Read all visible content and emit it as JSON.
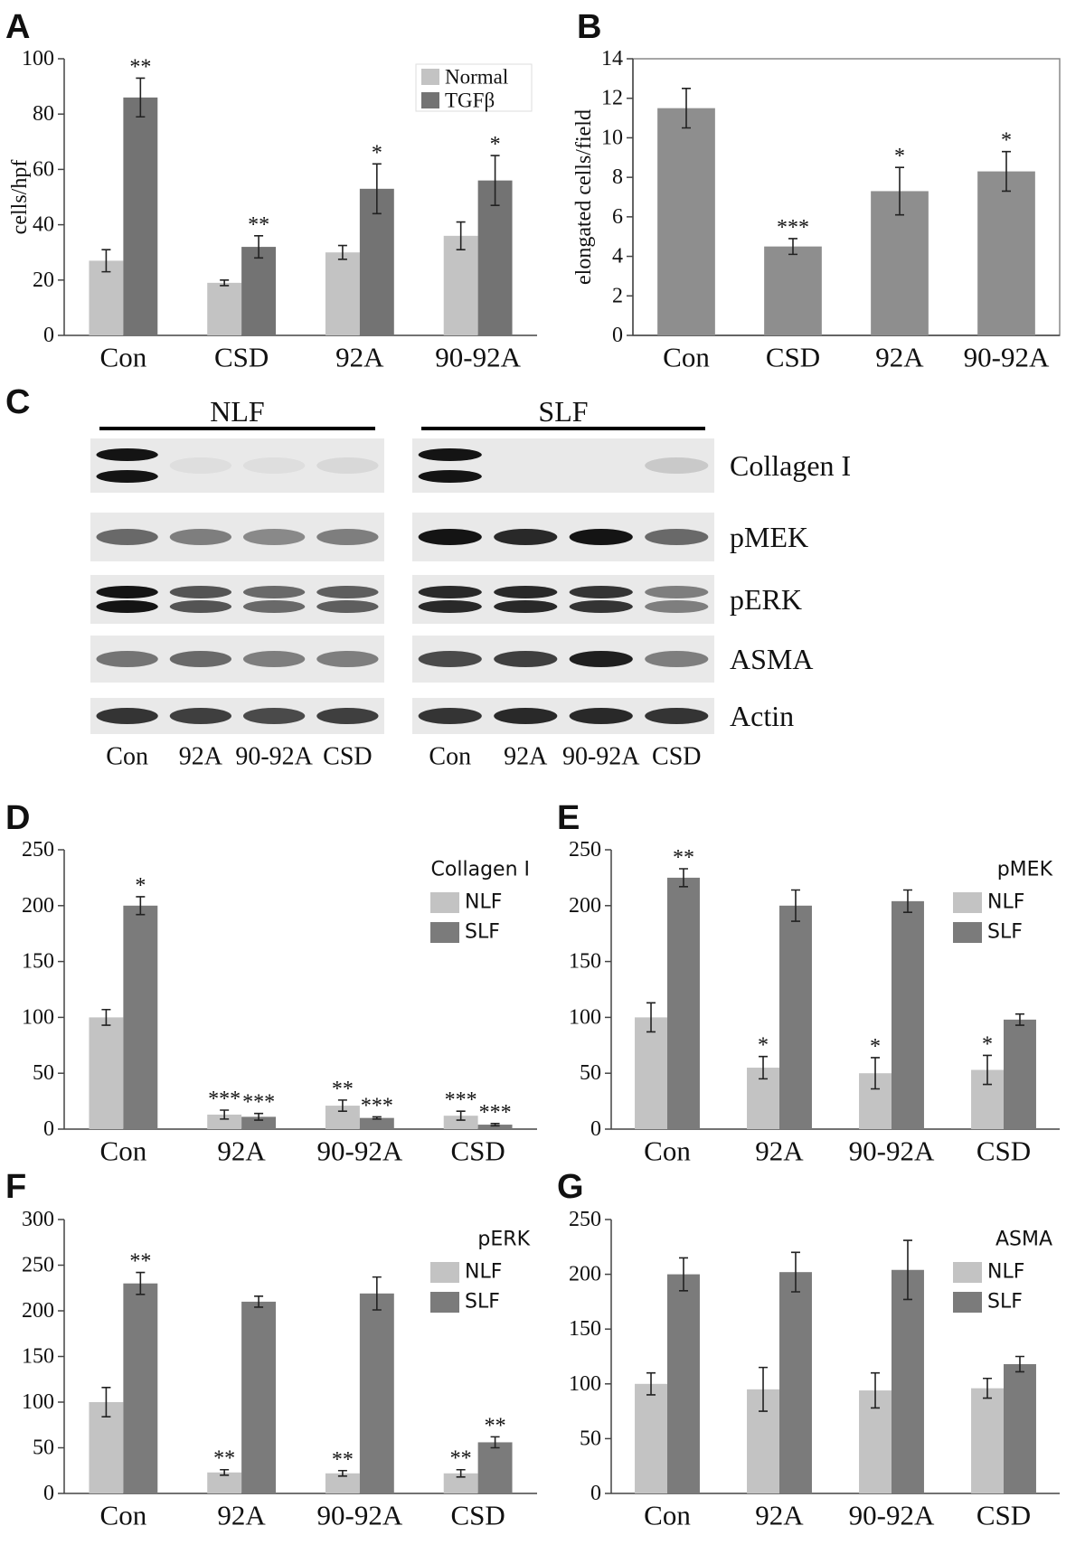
{
  "chart_data": [
    {
      "panel": "A",
      "type": "bar",
      "ylabel": "cells/hpf",
      "categories": [
        "Con",
        "CSD",
        "92A",
        "90-92A"
      ],
      "ylim": [
        0,
        100
      ],
      "yticks": [
        0,
        20,
        40,
        60,
        80,
        100
      ],
      "legend": "top-right",
      "legend_box": true,
      "series": [
        {
          "name": "Normal",
          "color": "#c3c3c3",
          "values": [
            27,
            19,
            30,
            36
          ],
          "errors": [
            4,
            1,
            2.5,
            5
          ],
          "stars": [
            null,
            null,
            null,
            null
          ]
        },
        {
          "name": "TGFβ",
          "color": "#737373",
          "values": [
            86,
            32,
            53,
            56
          ],
          "errors": [
            7,
            4,
            9,
            9
          ],
          "stars": [
            "**",
            "**",
            "*",
            "*"
          ]
        }
      ]
    },
    {
      "panel": "B",
      "type": "bar",
      "ylabel": "elongated cells/field",
      "categories": [
        "Con",
        "CSD",
        "92A",
        "90-92A"
      ],
      "ylim": [
        0,
        14
      ],
      "yticks": [
        0,
        2,
        4,
        6,
        8,
        10,
        12,
        14
      ],
      "frame": true,
      "series": [
        {
          "color": "#8e8e8e",
          "values": [
            11.5,
            4.5,
            7.3,
            8.3
          ],
          "errors": [
            1,
            0.4,
            1.2,
            1
          ],
          "stars": [
            null,
            "***",
            "*",
            "*"
          ]
        }
      ]
    },
    {
      "panel": "D",
      "type": "bar",
      "legend_title": "Collagen I",
      "categories": [
        "Con",
        "92A",
        "90-92A",
        "CSD"
      ],
      "ylim": [
        0,
        250
      ],
      "yticks": [
        0,
        50,
        100,
        150,
        200,
        250
      ],
      "legend": "top-right",
      "series": [
        {
          "name": "NLF",
          "color": "#c3c3c3",
          "values": [
            100,
            13,
            21,
            12
          ],
          "errors": [
            7,
            4,
            5,
            4
          ],
          "stars": [
            null,
            "***",
            "**",
            "***"
          ]
        },
        {
          "name": "SLF",
          "color": "#7b7b7b",
          "values": [
            200,
            11,
            10,
            4
          ],
          "errors": [
            8,
            3,
            1,
            1
          ],
          "stars": [
            "*",
            "***",
            "***",
            "***"
          ]
        }
      ]
    },
    {
      "panel": "E",
      "type": "bar",
      "legend_title": "pMEK",
      "categories": [
        "Con",
        "92A",
        "90-92A",
        "CSD"
      ],
      "ylim": [
        0,
        250
      ],
      "yticks": [
        0,
        50,
        100,
        150,
        200,
        250
      ],
      "legend": "top-right",
      "series": [
        {
          "name": "NLF",
          "color": "#c3c3c3",
          "values": [
            100,
            55,
            50,
            53
          ],
          "errors": [
            13,
            10,
            14,
            13
          ],
          "stars": [
            null,
            "*",
            "*",
            "*"
          ]
        },
        {
          "name": "SLF",
          "color": "#7b7b7b",
          "values": [
            225,
            200,
            204,
            98
          ],
          "errors": [
            8,
            14,
            10,
            5
          ],
          "stars": [
            "**",
            null,
            null,
            null
          ]
        }
      ]
    },
    {
      "panel": "F",
      "type": "bar",
      "legend_title": "pERK",
      "categories": [
        "Con",
        "92A",
        "90-92A",
        "CSD"
      ],
      "ylim": [
        0,
        300
      ],
      "yticks": [
        0,
        50,
        100,
        150,
        200,
        250,
        300
      ],
      "legend": "top-right",
      "series": [
        {
          "name": "NLF",
          "color": "#c3c3c3",
          "values": [
            100,
            23,
            22,
            22
          ],
          "errors": [
            16,
            3,
            3,
            4
          ],
          "stars": [
            null,
            "**",
            "**",
            "**"
          ]
        },
        {
          "name": "SLF",
          "color": "#7b7b7b",
          "values": [
            230,
            210,
            219,
            56
          ],
          "errors": [
            12,
            6,
            18,
            6
          ],
          "stars": [
            "**",
            null,
            null,
            "**"
          ]
        }
      ]
    },
    {
      "panel": "G",
      "type": "bar",
      "legend_title": "ASMA",
      "categories": [
        "Con",
        "92A",
        "90-92A",
        "CSD"
      ],
      "ylim": [
        0,
        250
      ],
      "yticks": [
        0,
        50,
        100,
        150,
        200,
        250
      ],
      "legend": "top-right",
      "series": [
        {
          "name": "NLF",
          "color": "#c3c3c3",
          "values": [
            100,
            95,
            94,
            96
          ],
          "errors": [
            10,
            20,
            16,
            9
          ],
          "stars": [
            null,
            null,
            null,
            null
          ]
        },
        {
          "name": "SLF",
          "color": "#7b7b7b",
          "values": [
            200,
            202,
            204,
            118
          ],
          "errors": [
            15,
            18,
            27,
            7
          ],
          "stars": [
            null,
            null,
            null,
            null
          ]
        }
      ]
    }
  ],
  "blot": {
    "panel": "C",
    "groups": [
      "NLF",
      "SLF"
    ],
    "proteins": [
      "Collagen I",
      "pMEK",
      "pERK",
      "ASMA",
      "Actin"
    ],
    "lanes": [
      [
        "Con",
        "92A",
        "90-92A",
        "CSD"
      ],
      [
        "Con",
        "92A",
        "90-92A",
        "CSD"
      ]
    ]
  }
}
